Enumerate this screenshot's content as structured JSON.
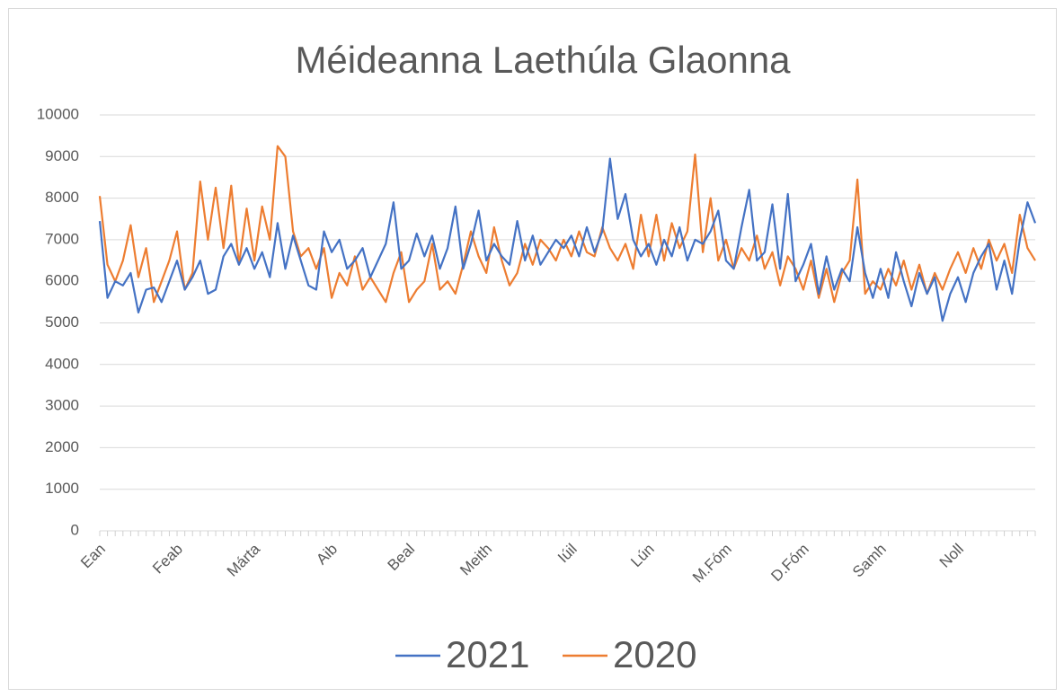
{
  "chart_data": {
    "type": "line",
    "title": "Méideanna Laethúla Glaonna",
    "categories": [
      "Ean",
      null,
      null,
      null,
      null,
      null,
      null,
      null,
      null,
      null,
      "Feab",
      null,
      null,
      null,
      null,
      null,
      null,
      null,
      null,
      null,
      "Márta",
      null,
      null,
      null,
      null,
      null,
      null,
      null,
      null,
      null,
      "Aib",
      null,
      null,
      null,
      null,
      null,
      null,
      null,
      null,
      null,
      "Beal",
      null,
      null,
      null,
      null,
      null,
      null,
      null,
      null,
      null,
      "Meith",
      null,
      null,
      null,
      null,
      null,
      null,
      null,
      null,
      null,
      null,
      "Iúil",
      null,
      null,
      null,
      null,
      null,
      null,
      null,
      null,
      null,
      "Lún",
      null,
      null,
      null,
      null,
      null,
      null,
      null,
      null,
      null,
      "M.Fóm",
      null,
      null,
      null,
      null,
      null,
      null,
      null,
      null,
      null,
      "D.Fóm",
      null,
      null,
      null,
      null,
      null,
      null,
      null,
      null,
      null,
      "Samh",
      null,
      null,
      null,
      null,
      null,
      null,
      null,
      null,
      null,
      "Noll",
      null,
      null,
      null,
      null,
      null,
      null,
      null,
      null,
      null,
      null
    ],
    "series": [
      {
        "name": "2021",
        "color": "#4472c4",
        "values": [
          7450,
          5600,
          6000,
          5900,
          6200,
          5250,
          5800,
          5850,
          5500,
          6000,
          6500,
          5800,
          6100,
          6500,
          5700,
          5800,
          6600,
          6900,
          6400,
          6800,
          6300,
          6700,
          6100,
          7400,
          6300,
          7100,
          6500,
          5900,
          5800,
          7200,
          6700,
          7000,
          6300,
          6500,
          6800,
          6100,
          6500,
          6900,
          7900,
          6300,
          6500,
          7150,
          6600,
          7100,
          6300,
          6800,
          7800,
          6300,
          6900,
          7700,
          6500,
          6900,
          6600,
          6400,
          7450,
          6500,
          7100,
          6400,
          6700,
          7000,
          6800,
          7100,
          6600,
          7300,
          6700,
          7200,
          8950,
          7500,
          8100,
          7000,
          6600,
          6900,
          6400,
          7000,
          6600,
          7300,
          6500,
          7000,
          6900,
          7200,
          7700,
          6500,
          6300,
          7300,
          8200,
          6500,
          6700,
          7850,
          6300,
          8100,
          6000,
          6400,
          6900,
          5700,
          6600,
          5800,
          6300,
          6000,
          7300,
          6200,
          5600,
          6300,
          5600,
          6700,
          6000,
          5400,
          6200,
          5700,
          6100,
          5050,
          5700,
          6100,
          5500,
          6200,
          6600,
          6900,
          5800,
          6500,
          5700,
          7000,
          7900,
          7400
        ]
      },
      {
        "name": "2020",
        "color": "#ed7d31",
        "values": [
          8050,
          6400,
          6000,
          6500,
          7350,
          6100,
          6800,
          5500,
          6000,
          6500,
          7200,
          5800,
          6200,
          8400,
          7000,
          8250,
          6800,
          8300,
          6400,
          7750,
          6500,
          7800,
          7000,
          9250,
          9000,
          7200,
          6600,
          6800,
          6300,
          6800,
          5600,
          6200,
          5900,
          6600,
          5800,
          6100,
          5800,
          5500,
          6200,
          6700,
          5500,
          5800,
          6000,
          6900,
          5800,
          6000,
          5700,
          6400,
          7200,
          6600,
          6200,
          7300,
          6500,
          5900,
          6200,
          6900,
          6400,
          7000,
          6800,
          6500,
          7000,
          6600,
          7200,
          6700,
          6600,
          7300,
          6800,
          6500,
          6900,
          6300,
          7600,
          6600,
          7600,
          6500,
          7400,
          6800,
          7200,
          9050,
          6700,
          8000,
          6500,
          7000,
          6300,
          6800,
          6500,
          7100,
          6300,
          6700,
          5900,
          6600,
          6300,
          5800,
          6500,
          5600,
          6300,
          5500,
          6200,
          6500,
          8450,
          5700,
          6000,
          5800,
          6300,
          5900,
          6500,
          5800,
          6400,
          5700,
          6200,
          5800,
          6300,
          6700,
          6200,
          6800,
          6300,
          7000,
          6500,
          6900,
          6200,
          7600,
          6800,
          6500
        ]
      }
    ],
    "ylim": [
      0,
      10000
    ],
    "yticks": [
      0,
      1000,
      2000,
      3000,
      4000,
      5000,
      6000,
      7000,
      8000,
      9000,
      10000
    ],
    "grid": true,
    "legend": "bottom"
  }
}
